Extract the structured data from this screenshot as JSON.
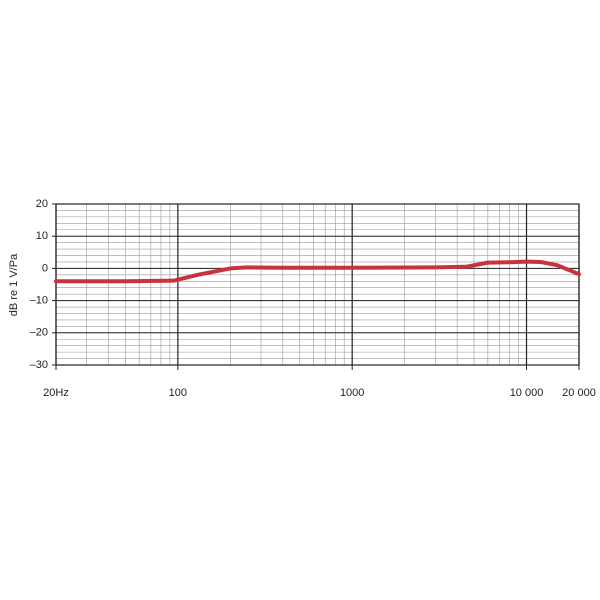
{
  "chart_data": {
    "type": "line",
    "y_label": "dB re 1 V/Pa",
    "x_scale": "log",
    "xlim": [
      20,
      20000
    ],
    "xticks": [
      {
        "value": 20,
        "label": "20Hz"
      },
      100,
      1000,
      {
        "value": 10000,
        "label": "10 000"
      },
      {
        "value": 20000,
        "label": "20 000"
      }
    ],
    "ylim": [
      -30,
      20
    ],
    "yticks": [
      20,
      10,
      0,
      {
        "value": -10,
        "label": "–10"
      },
      {
        "value": -20,
        "label": "–20"
      },
      {
        "value": -30,
        "label": "–30"
      }
    ],
    "grid": true,
    "minor_grid": true,
    "series": [
      {
        "color": "#c8323c",
        "x": [
          20,
          50,
          95,
          100,
          130,
          200,
          250,
          400,
          1000,
          3000,
          4500,
          6000,
          8000,
          10000,
          12000,
          15000,
          20000
        ],
        "values": [
          -4,
          -4,
          -3.8,
          -3.5,
          -2,
          0,
          0.3,
          0.2,
          0.2,
          0.3,
          0.5,
          1.8,
          1.9,
          2.1,
          2,
          1,
          -1.8
        ]
      }
    ]
  }
}
